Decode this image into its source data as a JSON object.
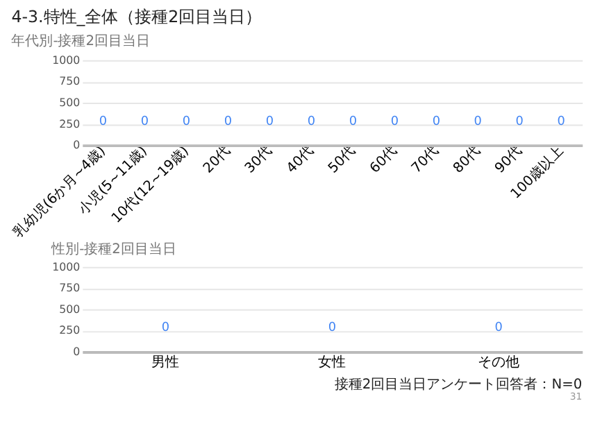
{
  "chart_data": [
    {
      "type": "bar",
      "title": "4-3.特性_全体（接種2回目当日）",
      "subtitle": "年代別-接種2回目当日",
      "categories": [
        "乳幼児(6か月~4歳)",
        "小児(5~11歳)",
        "10代(12~19歳)",
        "20代",
        "30代",
        "40代",
        "50代",
        "60代",
        "70代",
        "80代",
        "90代",
        "100歳以上"
      ],
      "values": [
        0,
        0,
        0,
        0,
        0,
        0,
        0,
        0,
        0,
        0,
        0,
        0
      ],
      "color": "#4285f4",
      "ylim": [
        0,
        1000
      ],
      "yticks": [
        0,
        250,
        500,
        750,
        1000
      ],
      "grid": "y",
      "data_labels": true
    },
    {
      "type": "bar",
      "title": "性別-接種2回目当日",
      "categories": [
        "男性",
        "女性",
        "その他"
      ],
      "values": [
        0,
        0,
        0
      ],
      "color": "#4285f4",
      "ylim": [
        0,
        1000
      ],
      "yticks": [
        0,
        250,
        500,
        750,
        1000
      ],
      "grid": "y",
      "data_labels": true,
      "annotations": [
        "接種2回目当日アンケート回答者：N=0",
        "31"
      ]
    }
  ]
}
